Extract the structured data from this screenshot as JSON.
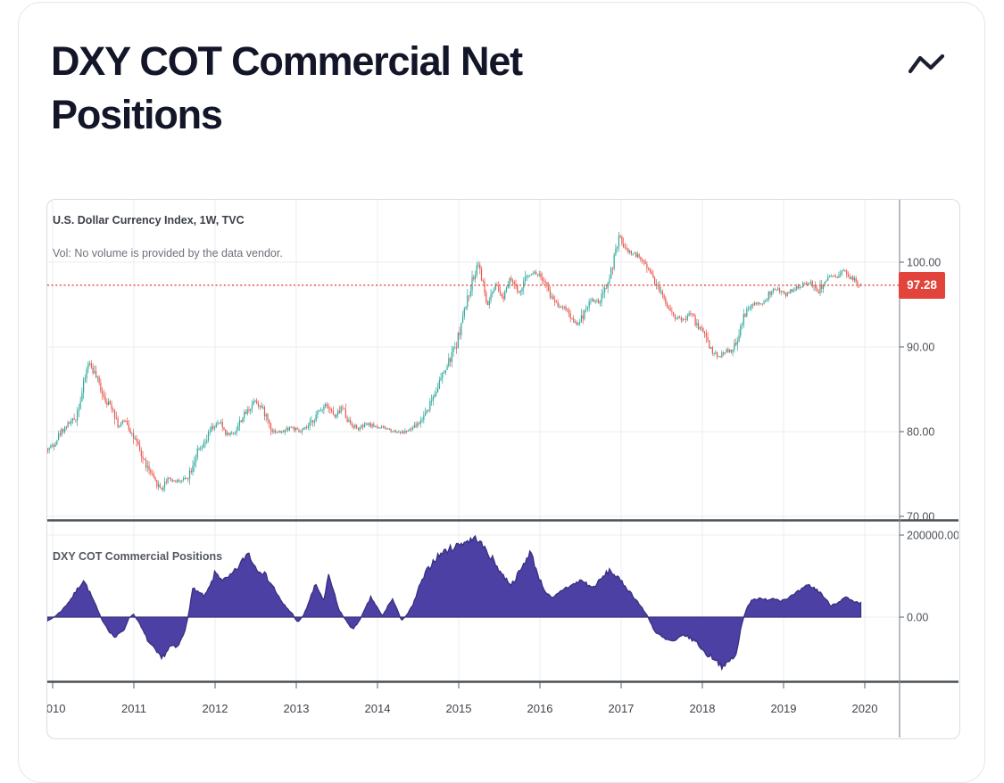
{
  "card": {
    "title": "DXY COT Commercial Net Positions",
    "icon": "wave-icon"
  },
  "chart": {
    "legend_symbol": "U.S. Dollar Currency Index, 1W, TVC",
    "legend_volume_note": "Vol: No volume is provided by the data vendor.",
    "panel2_label": "DXY COT Commercial Positions",
    "last_price_label": "97.28",
    "colors": {
      "candle_up": "#2ba79a",
      "candle_down": "#e9544b",
      "price_line": "#e2443b",
      "price_badge_bg": "#e2443b",
      "area_fill": "#4c40a4",
      "area_stroke": "#38307f",
      "grid": "#eaedf1",
      "separator": "#4b5056",
      "axis_line": "#8a9099"
    }
  },
  "chart_data": [
    {
      "type": "candlestick",
      "title": "U.S. Dollar Currency Index, 1W, TVC",
      "timeframe": "1W",
      "exchange": "TVC",
      "last_close": 97.28,
      "ylim": [
        68.5,
        105.5
      ],
      "y_ticks": [
        100,
        90,
        80,
        70
      ],
      "y_tick_labels": [
        "100.00",
        "90.00",
        "80.00",
        "70.00"
      ],
      "x_ticks": [
        2010,
        2011,
        2012,
        2013,
        2014,
        2015,
        2016,
        2017,
        2018,
        2019,
        2020
      ],
      "x_tick_labels": [
        "2010",
        "2011",
        "2012",
        "2013",
        "2014",
        "2015",
        "2016",
        "2017",
        "2018",
        "2019",
        "2020"
      ],
      "price_path": [
        [
          2009.9,
          77.6
        ],
        [
          2010.02,
          78.6
        ],
        [
          2010.1,
          80.0
        ],
        [
          2010.19,
          80.9
        ],
        [
          2010.28,
          81.6
        ],
        [
          2010.36,
          84.5
        ],
        [
          2010.44,
          88.3
        ],
        [
          2010.5,
          87.2
        ],
        [
          2010.57,
          85.6
        ],
        [
          2010.66,
          83.6
        ],
        [
          2010.74,
          82.9
        ],
        [
          2010.81,
          80.6
        ],
        [
          2010.9,
          81.4
        ],
        [
          2011.0,
          79.2
        ],
        [
          2011.12,
          76.6
        ],
        [
          2011.25,
          74.2
        ],
        [
          2011.34,
          73.2
        ],
        [
          2011.42,
          74.6
        ],
        [
          2011.5,
          74.1
        ],
        [
          2011.6,
          74.3
        ],
        [
          2011.67,
          74.8
        ],
        [
          2011.78,
          77.6
        ],
        [
          2011.87,
          78.4
        ],
        [
          2011.95,
          80.3
        ],
        [
          2012.06,
          81.1
        ],
        [
          2012.14,
          79.7
        ],
        [
          2012.24,
          79.9
        ],
        [
          2012.33,
          81.6
        ],
        [
          2012.42,
          82.7
        ],
        [
          2012.49,
          83.8
        ],
        [
          2012.6,
          82.4
        ],
        [
          2012.71,
          80.1
        ],
        [
          2012.82,
          79.9
        ],
        [
          2012.93,
          80.6
        ],
        [
          2013.04,
          79.9
        ],
        [
          2013.15,
          80.6
        ],
        [
          2013.26,
          82.1
        ],
        [
          2013.37,
          83.4
        ],
        [
          2013.48,
          81.6
        ],
        [
          2013.56,
          83.0
        ],
        [
          2013.65,
          81.1
        ],
        [
          2013.76,
          80.3
        ],
        [
          2013.87,
          80.9
        ],
        [
          2013.98,
          80.6
        ],
        [
          2014.09,
          80.4
        ],
        [
          2014.2,
          80.1
        ],
        [
          2014.31,
          79.9
        ],
        [
          2014.42,
          80.3
        ],
        [
          2014.53,
          81.2
        ],
        [
          2014.64,
          83.2
        ],
        [
          2014.75,
          85.6
        ],
        [
          2014.86,
          87.8
        ],
        [
          2014.97,
          90.3
        ],
        [
          2015.08,
          94.6
        ],
        [
          2015.16,
          97.6
        ],
        [
          2015.24,
          100.1
        ],
        [
          2015.35,
          94.8
        ],
        [
          2015.46,
          97.2
        ],
        [
          2015.54,
          95.7
        ],
        [
          2015.63,
          98.4
        ],
        [
          2015.74,
          96.2
        ],
        [
          2015.85,
          98.6
        ],
        [
          2015.93,
          98.8
        ],
        [
          2016.01,
          98.4
        ],
        [
          2016.12,
          96.2
        ],
        [
          2016.23,
          94.9
        ],
        [
          2016.32,
          94.6
        ],
        [
          2016.4,
          93.2
        ],
        [
          2016.48,
          92.6
        ],
        [
          2016.56,
          94.6
        ],
        [
          2016.64,
          95.6
        ],
        [
          2016.73,
          95.2
        ],
        [
          2016.81,
          96.8
        ],
        [
          2016.9,
          99.8
        ],
        [
          2016.98,
          103.1
        ],
        [
          2017.06,
          101.4
        ],
        [
          2017.16,
          101.0
        ],
        [
          2017.25,
          100.4
        ],
        [
          2017.33,
          99.4
        ],
        [
          2017.44,
          97.3
        ],
        [
          2017.55,
          95.3
        ],
        [
          2017.66,
          93.6
        ],
        [
          2017.77,
          93.1
        ],
        [
          2017.85,
          94.1
        ],
        [
          2017.93,
          92.6
        ],
        [
          2018.02,
          91.8
        ],
        [
          2018.1,
          89.8
        ],
        [
          2018.19,
          88.8
        ],
        [
          2018.29,
          89.6
        ],
        [
          2018.37,
          89.4
        ],
        [
          2018.46,
          91.7
        ],
        [
          2018.53,
          94.1
        ],
        [
          2018.64,
          95.1
        ],
        [
          2018.76,
          95.1
        ],
        [
          2018.83,
          96.4
        ],
        [
          2018.92,
          96.9
        ],
        [
          2019.01,
          96.1
        ],
        [
          2019.09,
          96.6
        ],
        [
          2019.18,
          97.1
        ],
        [
          2019.25,
          97.4
        ],
        [
          2019.34,
          97.7
        ],
        [
          2019.42,
          96.4
        ],
        [
          2019.49,
          97.6
        ],
        [
          2019.58,
          98.3
        ],
        [
          2019.67,
          98.1
        ],
        [
          2019.75,
          99.3
        ],
        [
          2019.81,
          98.3
        ],
        [
          2019.87,
          97.9
        ],
        [
          2019.95,
          97.28
        ]
      ]
    },
    {
      "type": "area",
      "title": "DXY COT Commercial Positions",
      "ylim": [
        -160000,
        230000
      ],
      "y_ticks": [
        200000,
        0
      ],
      "y_tick_labels": [
        "200000.00",
        "0.00"
      ],
      "x_ticks": [
        2010,
        2011,
        2012,
        2013,
        2014,
        2015,
        2016,
        2017,
        2018,
        2019,
        2020
      ],
      "series": [
        {
          "name": "DXY COT Commercial Positions",
          "points": [
            [
              2009.9,
              -15000
            ],
            [
              2010.05,
              5000
            ],
            [
              2010.13,
              20000
            ],
            [
              2010.24,
              48000
            ],
            [
              2010.38,
              91000
            ],
            [
              2010.5,
              42000
            ],
            [
              2010.59,
              0
            ],
            [
              2010.7,
              -35000
            ],
            [
              2010.77,
              -50000
            ],
            [
              2010.88,
              -30000
            ],
            [
              2010.93,
              -5000
            ],
            [
              2010.99,
              8000
            ],
            [
              2011.04,
              -5000
            ],
            [
              2011.18,
              -60000
            ],
            [
              2011.34,
              -102000
            ],
            [
              2011.45,
              -70000
            ],
            [
              2011.53,
              -76000
            ],
            [
              2011.62,
              -40000
            ],
            [
              2011.67,
              5000
            ],
            [
              2011.73,
              72000
            ],
            [
              2011.8,
              60000
            ],
            [
              2011.87,
              50000
            ],
            [
              2011.95,
              80000
            ],
            [
              2012.0,
              109000
            ],
            [
              2012.1,
              90000
            ],
            [
              2012.17,
              96000
            ],
            [
              2012.28,
              120000
            ],
            [
              2012.41,
              159000
            ],
            [
              2012.47,
              130000
            ],
            [
              2012.52,
              118000
            ],
            [
              2012.6,
              108000
            ],
            [
              2012.71,
              76000
            ],
            [
              2012.82,
              36000
            ],
            [
              2012.96,
              6000
            ],
            [
              2013.02,
              -14000
            ],
            [
              2013.1,
              8000
            ],
            [
              2013.17,
              45000
            ],
            [
              2013.24,
              80000
            ],
            [
              2013.34,
              40000
            ],
            [
              2013.4,
              103000
            ],
            [
              2013.52,
              20000
            ],
            [
              2013.6,
              -5000
            ],
            [
              2013.7,
              -31000
            ],
            [
              2013.8,
              0
            ],
            [
              2013.92,
              49000
            ],
            [
              2014.02,
              15000
            ],
            [
              2014.06,
              2000
            ],
            [
              2014.18,
              45000
            ],
            [
              2014.24,
              20000
            ],
            [
              2014.29,
              -8000
            ],
            [
              2014.36,
              5000
            ],
            [
              2014.44,
              30000
            ],
            [
              2014.5,
              67000
            ],
            [
              2014.6,
              110000
            ],
            [
              2014.7,
              140000
            ],
            [
              2014.8,
              158000
            ],
            [
              2014.9,
              167000
            ],
            [
              2015.04,
              181000
            ],
            [
              2015.22,
              193000
            ],
            [
              2015.41,
              143000
            ],
            [
              2015.55,
              100000
            ],
            [
              2015.65,
              79000
            ],
            [
              2015.78,
              120000
            ],
            [
              2015.88,
              161000
            ],
            [
              2016.0,
              90000
            ],
            [
              2016.07,
              62000
            ],
            [
              2016.15,
              44000
            ],
            [
              2016.3,
              70000
            ],
            [
              2016.43,
              81000
            ],
            [
              2016.51,
              90000
            ],
            [
              2016.65,
              71000
            ],
            [
              2016.86,
              115000
            ],
            [
              2017.05,
              76000
            ],
            [
              2017.19,
              41000
            ],
            [
              2017.33,
              1000
            ],
            [
              2017.42,
              -37000
            ],
            [
              2017.55,
              -55000
            ],
            [
              2017.66,
              -60000
            ],
            [
              2017.77,
              -42000
            ],
            [
              2017.85,
              -52000
            ],
            [
              2017.93,
              -61000
            ],
            [
              2018.04,
              -90000
            ],
            [
              2018.15,
              -100000
            ],
            [
              2018.26,
              -124000
            ],
            [
              2018.34,
              -105000
            ],
            [
              2018.42,
              -92000
            ],
            [
              2018.48,
              -20000
            ],
            [
              2018.55,
              25000
            ],
            [
              2018.63,
              46000
            ],
            [
              2018.76,
              42000
            ],
            [
              2018.87,
              46000
            ],
            [
              2018.98,
              41000
            ],
            [
              2019.11,
              52000
            ],
            [
              2019.31,
              78000
            ],
            [
              2019.45,
              61000
            ],
            [
              2019.58,
              28000
            ],
            [
              2019.7,
              40000
            ],
            [
              2019.77,
              48000
            ],
            [
              2019.86,
              36000
            ],
            [
              2019.95,
              33000
            ]
          ]
        }
      ]
    }
  ]
}
